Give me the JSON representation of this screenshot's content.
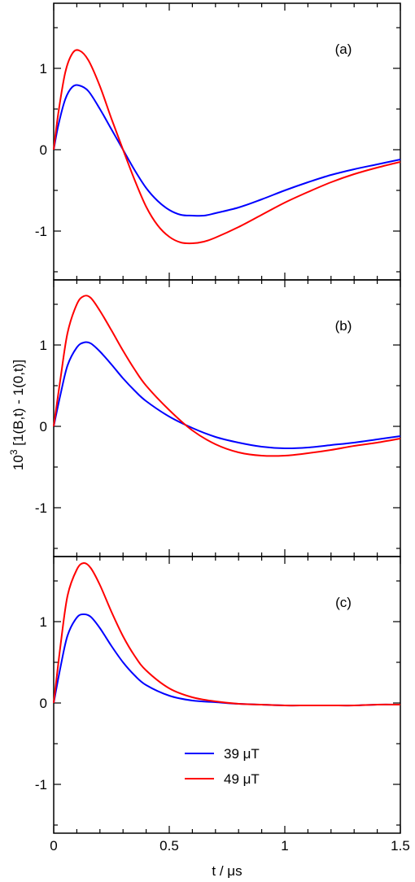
{
  "chart_data": [
    {
      "type": "line",
      "panel_label": "(a)",
      "xlim": [
        0,
        1.5
      ],
      "ylim": [
        -1.6,
        1.8
      ],
      "x_ticks": [
        "0",
        "0.5",
        "1",
        "1.5"
      ],
      "y_ticks": [
        "-1",
        "0",
        "1"
      ],
      "grid": false,
      "series": [
        {
          "name": "39 μT",
          "color": "#0000ff",
          "x": [
            0,
            0.02,
            0.05,
            0.08,
            0.11,
            0.15,
            0.2,
            0.25,
            0.3,
            0.35,
            0.4,
            0.45,
            0.5,
            0.55,
            0.6,
            0.65,
            0.7,
            0.8,
            0.9,
            1.0,
            1.1,
            1.2,
            1.3,
            1.4,
            1.5
          ],
          "y": [
            0,
            0.3,
            0.62,
            0.77,
            0.79,
            0.72,
            0.5,
            0.25,
            0.0,
            -0.25,
            -0.47,
            -0.63,
            -0.74,
            -0.8,
            -0.81,
            -0.81,
            -0.78,
            -0.71,
            -0.61,
            -0.5,
            -0.4,
            -0.31,
            -0.24,
            -0.18,
            -0.12
          ]
        },
        {
          "name": "49 μT",
          "color": "#ff0000",
          "x": [
            0,
            0.02,
            0.05,
            0.08,
            0.11,
            0.15,
            0.2,
            0.25,
            0.3,
            0.35,
            0.4,
            0.45,
            0.5,
            0.55,
            0.6,
            0.65,
            0.7,
            0.8,
            0.9,
            1.0,
            1.1,
            1.2,
            1.3,
            1.4,
            1.5
          ],
          "y": [
            0,
            0.45,
            0.95,
            1.18,
            1.22,
            1.1,
            0.78,
            0.38,
            0.0,
            -0.37,
            -0.7,
            -0.93,
            -1.07,
            -1.14,
            -1.15,
            -1.13,
            -1.08,
            -0.95,
            -0.8,
            -0.65,
            -0.52,
            -0.4,
            -0.3,
            -0.22,
            -0.15
          ]
        }
      ]
    },
    {
      "type": "line",
      "panel_label": "(b)",
      "xlim": [
        0,
        1.5
      ],
      "ylim": [
        -1.6,
        1.8
      ],
      "x_ticks": [
        "0",
        "0.5",
        "1",
        "1.5"
      ],
      "y_ticks": [
        "-1",
        "0",
        "1"
      ],
      "grid": false,
      "series": [
        {
          "name": "39 μT",
          "color": "#0000ff",
          "x": [
            0,
            0.03,
            0.06,
            0.1,
            0.13,
            0.16,
            0.2,
            0.25,
            0.3,
            0.35,
            0.4,
            0.5,
            0.6,
            0.7,
            0.8,
            0.9,
            1.0,
            1.1,
            1.2,
            1.3,
            1.4,
            1.5
          ],
          "y": [
            0,
            0.4,
            0.75,
            0.97,
            1.03,
            1.02,
            0.92,
            0.76,
            0.59,
            0.44,
            0.31,
            0.12,
            -0.02,
            -0.13,
            -0.2,
            -0.25,
            -0.27,
            -0.26,
            -0.23,
            -0.2,
            -0.16,
            -0.12
          ]
        },
        {
          "name": "49 μT",
          "color": "#ff0000",
          "x": [
            0,
            0.03,
            0.06,
            0.1,
            0.13,
            0.16,
            0.2,
            0.25,
            0.3,
            0.35,
            0.4,
            0.5,
            0.6,
            0.7,
            0.8,
            0.9,
            1.0,
            1.1,
            1.2,
            1.3,
            1.4,
            1.5
          ],
          "y": [
            0,
            0.6,
            1.15,
            1.5,
            1.6,
            1.58,
            1.42,
            1.18,
            0.93,
            0.7,
            0.5,
            0.2,
            -0.05,
            -0.22,
            -0.32,
            -0.36,
            -0.36,
            -0.33,
            -0.29,
            -0.24,
            -0.2,
            -0.15
          ]
        }
      ]
    },
    {
      "type": "line",
      "panel_label": "(c)",
      "xlim": [
        0,
        1.5
      ],
      "ylim": [
        -1.6,
        1.8
      ],
      "x_ticks": [
        "0",
        "0.5",
        "1",
        "1.5"
      ],
      "y_ticks": [
        "-1",
        "0",
        "1"
      ],
      "xlabel": "t / μs",
      "grid": false,
      "series": [
        {
          "name": "39 μT",
          "color": "#0000ff",
          "x": [
            0,
            0.03,
            0.06,
            0.1,
            0.13,
            0.16,
            0.2,
            0.25,
            0.3,
            0.35,
            0.4,
            0.5,
            0.6,
            0.7,
            0.8,
            0.9,
            1.0,
            1.1,
            1.2,
            1.3,
            1.4,
            1.5
          ],
          "y": [
            0,
            0.45,
            0.83,
            1.05,
            1.09,
            1.06,
            0.92,
            0.7,
            0.5,
            0.34,
            0.22,
            0.09,
            0.03,
            0.01,
            -0.01,
            -0.02,
            -0.03,
            -0.03,
            -0.03,
            -0.03,
            -0.02,
            -0.02
          ]
        },
        {
          "name": "49 μT",
          "color": "#ff0000",
          "x": [
            0,
            0.03,
            0.06,
            0.1,
            0.13,
            0.16,
            0.2,
            0.25,
            0.3,
            0.35,
            0.4,
            0.5,
            0.6,
            0.7,
            0.8,
            0.9,
            1.0,
            1.1,
            1.2,
            1.3,
            1.4,
            1.5
          ],
          "y": [
            0,
            0.72,
            1.32,
            1.64,
            1.72,
            1.66,
            1.45,
            1.12,
            0.82,
            0.58,
            0.4,
            0.18,
            0.07,
            0.02,
            -0.01,
            -0.02,
            -0.03,
            -0.03,
            -0.03,
            -0.03,
            -0.02,
            -0.02
          ]
        }
      ]
    }
  ],
  "ylabel": {
    "prefix": "10",
    "exponent": "3",
    "body": " [1(B,t) - 1(0,t)]"
  },
  "legend": {
    "placement": "bottom-center of panel (c)",
    "entries": [
      {
        "label": "39 μT",
        "color": "#0000ff"
      },
      {
        "label": "49 μT",
        "color": "#ff0000"
      }
    ]
  },
  "colors": {
    "axis": "#000000",
    "background": "#ffffff"
  }
}
